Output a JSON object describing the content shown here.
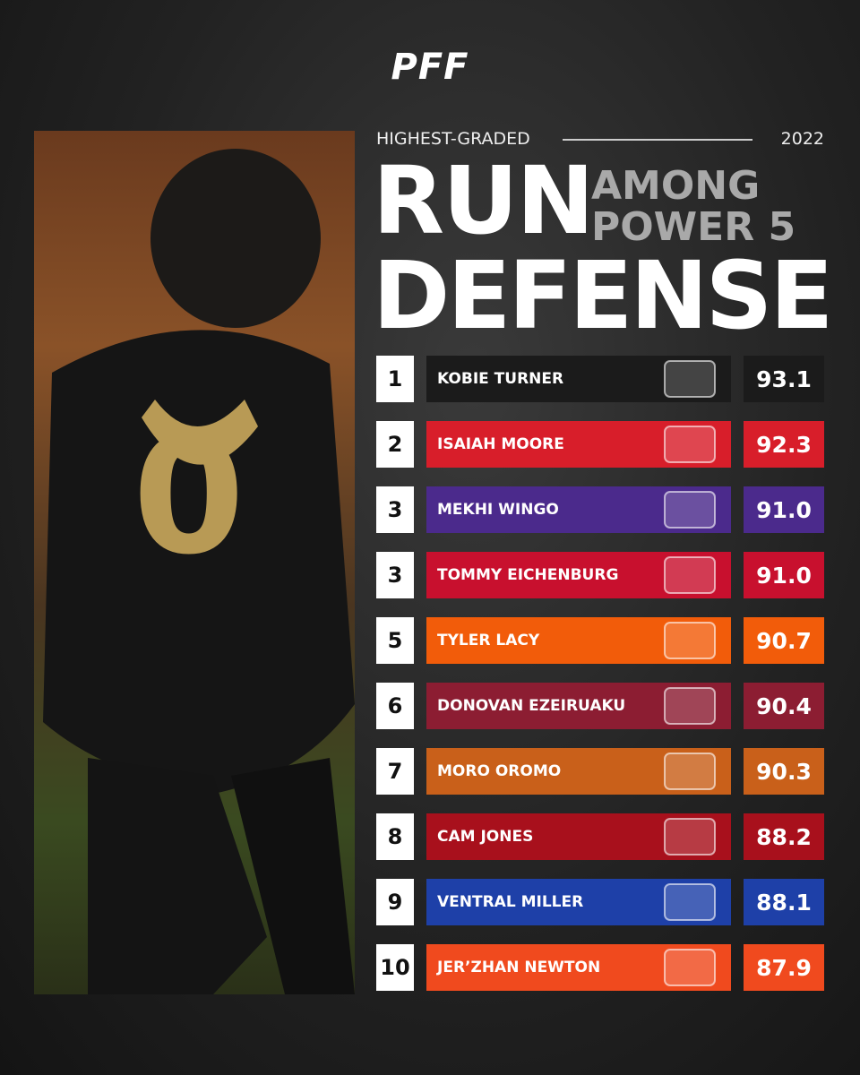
{
  "header": {
    "logo": "PFF",
    "kicker": "HIGHEST-GRADED",
    "year": "2022",
    "title_top": "RUN",
    "title_bottom": "DEFENSE",
    "subtitle_line1": "AMONG",
    "subtitle_line2": "POWER 5"
  },
  "table": {
    "rows": [
      {
        "rank": "1",
        "name": "KOBIE TURNER",
        "grade": "93.1",
        "color": "#1b1b1b",
        "grade_color": "#1b1b1b"
      },
      {
        "rank": "2",
        "name": "ISAIAH MOORE",
        "grade": "92.3",
        "color": "#d81e2a",
        "grade_color": "#d81e2a"
      },
      {
        "rank": "3",
        "name": "MEKHI WINGO",
        "grade": "91.0",
        "color": "#4b2a8c",
        "grade_color": "#4b2a8c"
      },
      {
        "rank": "3",
        "name": "TOMMY EICHENBURG",
        "grade": "91.0",
        "color": "#c8102e",
        "grade_color": "#c8102e"
      },
      {
        "rank": "5",
        "name": "TYLER LACY",
        "grade": "90.7",
        "color": "#f25c0a",
        "grade_color": "#f25c0a"
      },
      {
        "rank": "6",
        "name": "DONOVAN EZEIRUAKU",
        "grade": "90.4",
        "color": "#8c1d32",
        "grade_color": "#8c1d32"
      },
      {
        "rank": "7",
        "name": "MORO OROMO",
        "grade": "90.3",
        "color": "#c9601a",
        "grade_color": "#c9601a"
      },
      {
        "rank": "8",
        "name": "CAM JONES",
        "grade": "88.2",
        "color": "#a8101c",
        "grade_color": "#a8101c"
      },
      {
        "rank": "9",
        "name": "VENTRAL MILLER",
        "grade": "88.1",
        "color": "#1e40a8",
        "grade_color": "#1e40a8"
      },
      {
        "rank": "10",
        "name": "JER’ZHAN NEWTON",
        "grade": "87.9",
        "color": "#f04a1e",
        "grade_color": "#f04a1e"
      }
    ]
  }
}
